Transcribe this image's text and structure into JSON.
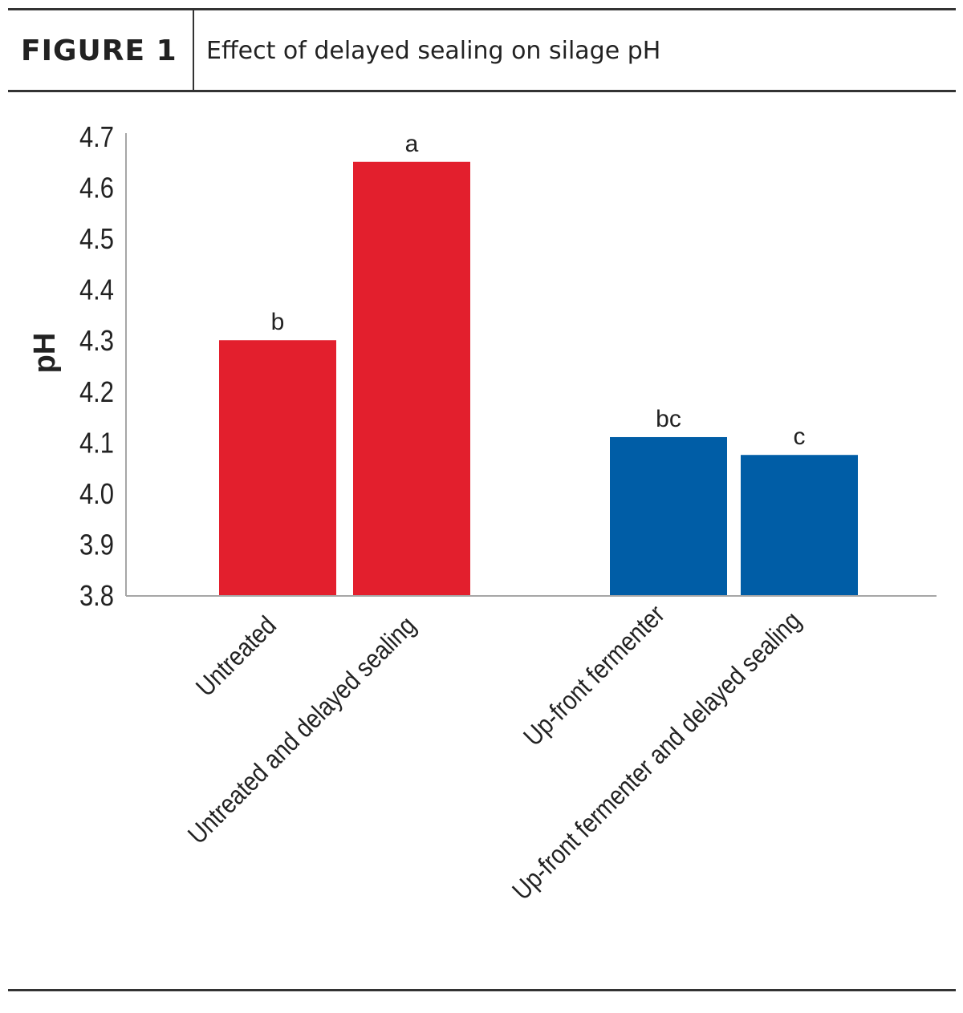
{
  "header": {
    "figure_label": "FIGURE 1",
    "title": "Effect of delayed sealing on silage pH"
  },
  "colors": {
    "red": "#E31F2D",
    "blue": "#005DA6",
    "axis": "#A6A6A6",
    "text": "#222222",
    "rule": "#333333"
  },
  "chart_data": {
    "type": "bar",
    "title": "Effect of delayed sealing on silage pH",
    "ylabel": "pH",
    "xlabel": "",
    "ylim": [
      3.8,
      4.7
    ],
    "yticks": [
      "3.8",
      "3.9",
      "4.0",
      "4.1",
      "4.2",
      "4.3",
      "4.4",
      "4.5",
      "4.6",
      "4.7"
    ],
    "grid": false,
    "categories": [
      "Untreated",
      "Untreated and delayed sealing",
      "Up-front fermenter",
      "Up-front fermenter and delayed sealing"
    ],
    "values": [
      4.3,
      4.65,
      4.11,
      4.075
    ],
    "bar_labels": [
      "b",
      "a",
      "bc",
      "c"
    ],
    "bar_colors": [
      "#E31F2D",
      "#E31F2D",
      "#005DA6",
      "#005DA6"
    ]
  }
}
